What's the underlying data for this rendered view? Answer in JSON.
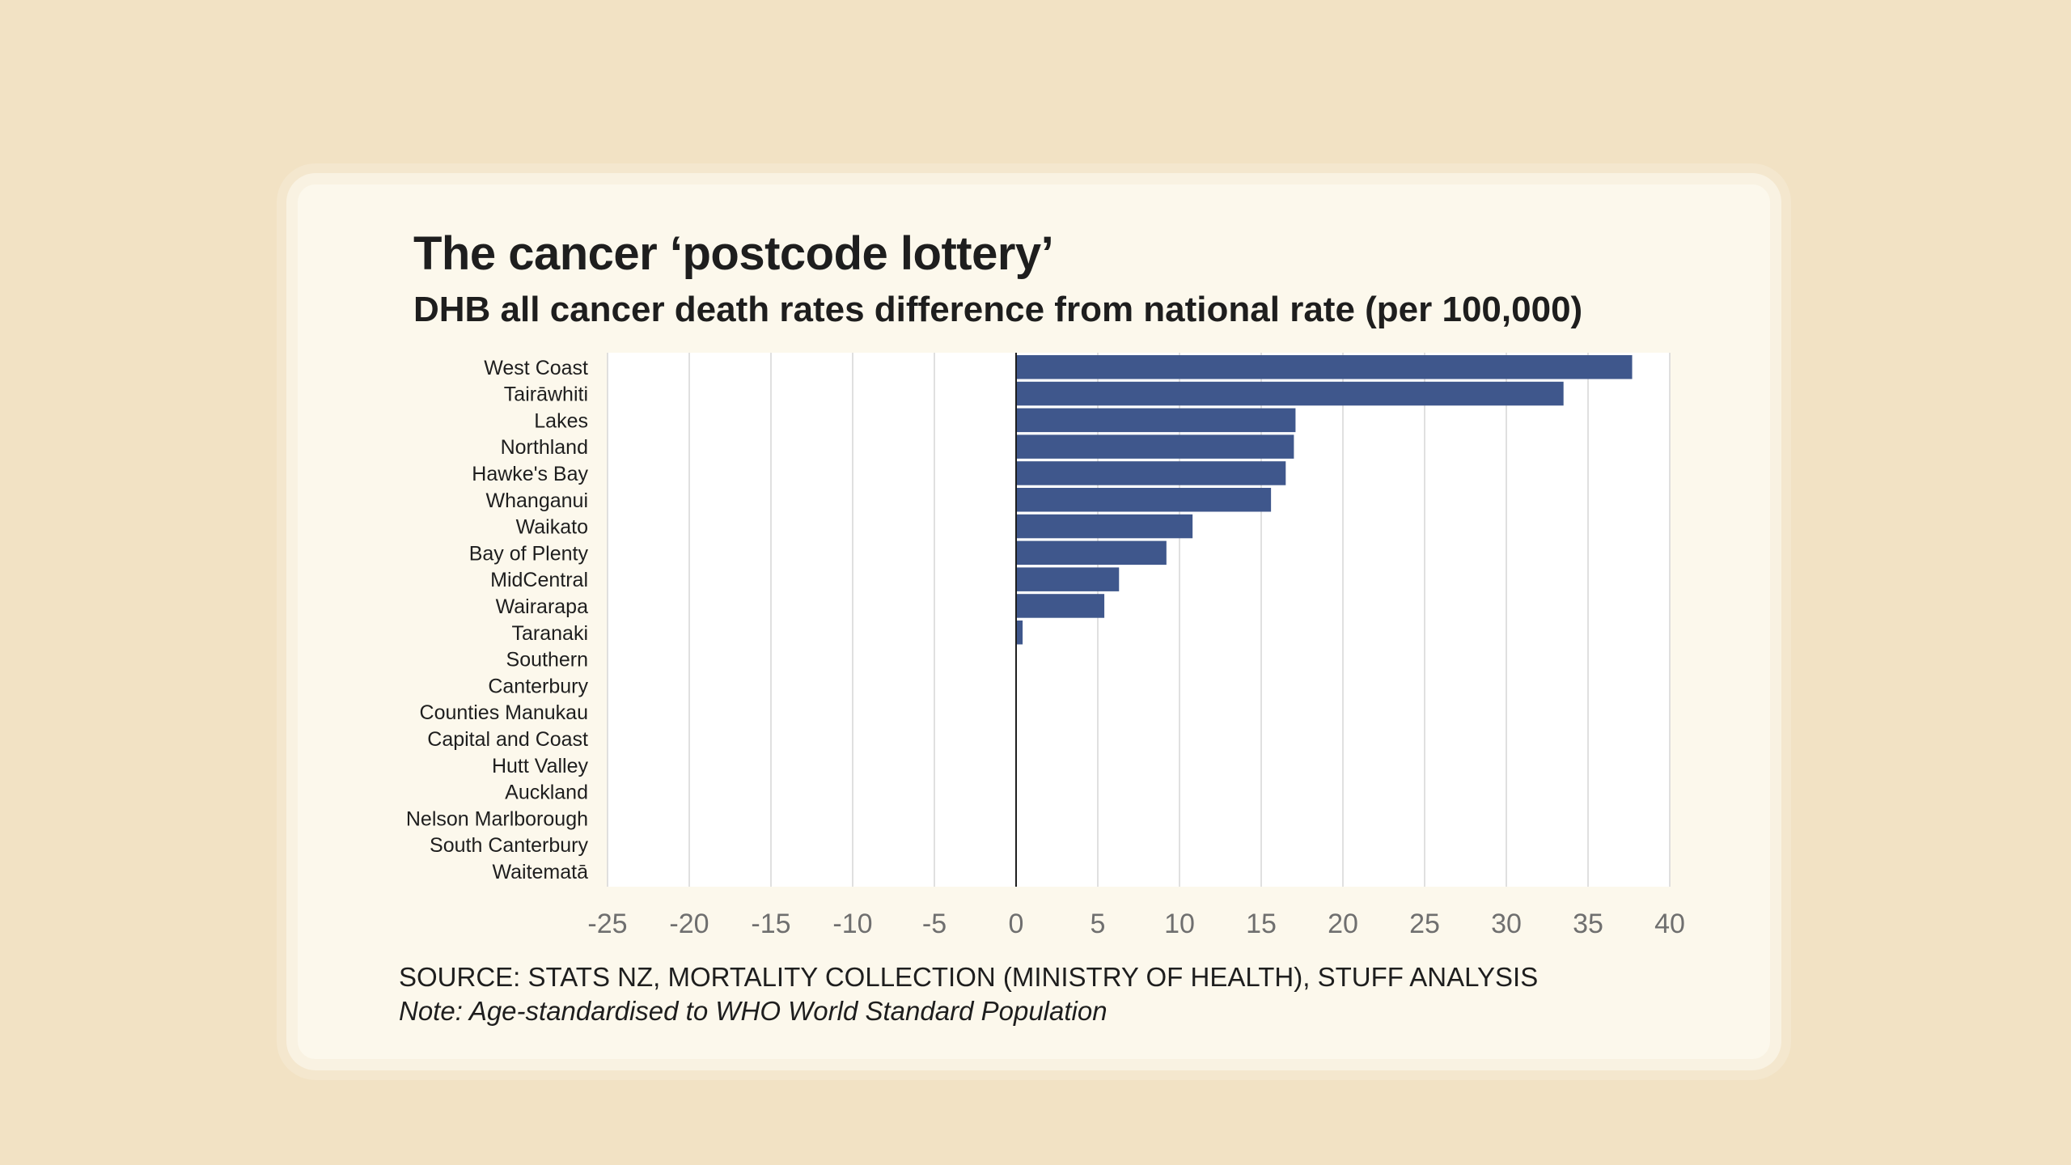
{
  "chart_data": {
    "type": "bar",
    "orientation": "horizontal",
    "title": "The cancer ‘postcode lottery’",
    "subtitle": "DHB all cancer death rates difference from national rate (per 100,000)",
    "categories": [
      "West Coast",
      "Tairāwhiti",
      "Lakes",
      "Northland",
      "Hawke's Bay",
      "Whanganui",
      "Waikato",
      "Bay of Plenty",
      "MidCentral",
      "Wairarapa",
      "Taranaki",
      "Southern",
      "Canterbury",
      "Counties Manukau",
      "Capital and Coast",
      "Hutt Valley",
      "Auckland",
      "Nelson Marlborough",
      "South Canterbury",
      "Waitematā"
    ],
    "values": [
      37.7,
      33.5,
      17.1,
      17.0,
      16.5,
      15.6,
      10.8,
      9.2,
      6.3,
      5.4,
      0.4,
      0,
      0,
      0,
      0,
      0,
      0,
      0,
      0,
      0
    ],
    "xlim": [
      -25,
      40
    ],
    "xticks": [
      -25,
      -20,
      -15,
      -10,
      -5,
      0,
      5,
      10,
      15,
      20,
      25,
      30,
      35,
      40
    ],
    "xlabel": "",
    "ylabel": "",
    "grid": "vertical",
    "bar_color": "#3f578c",
    "source": "SOURCE: STATS NZ, MORTALITY COLLECTION (MINISTRY OF HEALTH), STUFF ANALYSIS",
    "note": "Note: Age-standardised to WHO World Standard Population"
  }
}
